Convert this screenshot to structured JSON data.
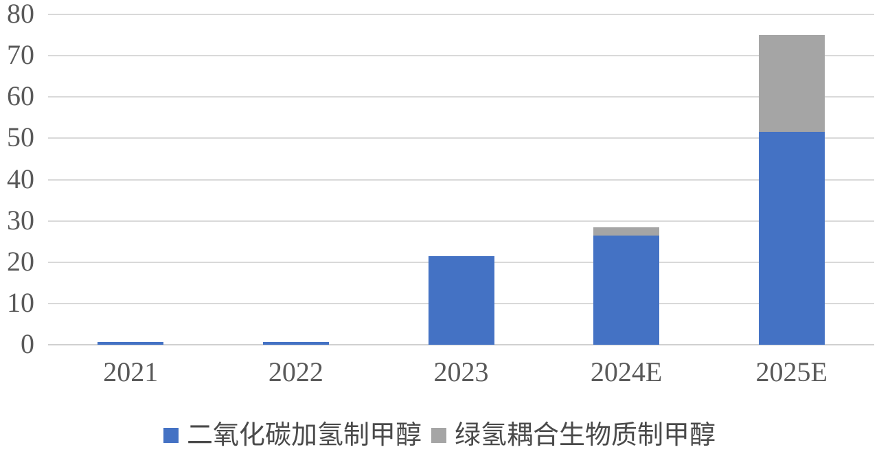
{
  "chart_data": {
    "type": "bar",
    "stacked": true,
    "title": "",
    "xlabel": "",
    "ylabel": "",
    "categories": [
      "2021",
      "2022",
      "2023",
      "2024E",
      "2025E"
    ],
    "series": [
      {
        "name": "二氧化碳加氢制甲醇",
        "color": "#4472C4",
        "values": [
          0.7,
          0.7,
          21.5,
          26.5,
          51.5
        ]
      },
      {
        "name": "绿氢耦合生物质制甲醇",
        "color": "#A5A5A5",
        "values": [
          0,
          0,
          0,
          2,
          23.5
        ]
      }
    ],
    "ylim": [
      0,
      80
    ],
    "yticks": [
      0,
      10,
      20,
      30,
      40,
      50,
      60,
      70,
      80
    ],
    "grid": "horizontal",
    "legend_position": "bottom"
  },
  "colors": {
    "background": "#FFFFFF",
    "gridline": "#D9D9D9",
    "axis_text": "#595959",
    "legend_text": "#4A4A4A"
  }
}
